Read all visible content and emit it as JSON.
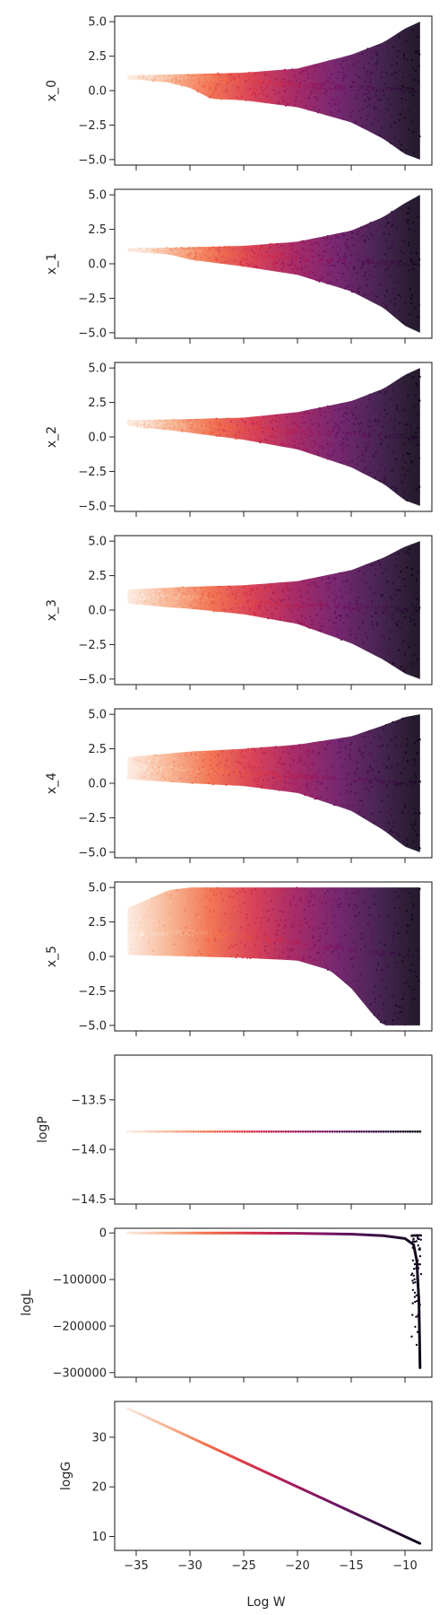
{
  "figure": {
    "xlabel": "Log W"
  },
  "colormap": [
    "#fcebe0",
    "#f7b08c",
    "#f06947",
    "#d6334a",
    "#a01a5c",
    "#6b1664",
    "#3a1245",
    "#0e0717"
  ],
  "chart_data": [
    {
      "type": "scatter",
      "ylabel": "x_0",
      "xlim": [
        -37,
        -7.5
      ],
      "ylim": [
        -5.4,
        5.4
      ],
      "x_ticks": [
        -35,
        -30,
        -25,
        -20,
        -15,
        -10
      ],
      "x_tick_labels": [],
      "y_ticks": [
        5.0,
        2.5,
        0.0,
        -2.5,
        -5.0
      ],
      "y_tick_labels": [
        "5.0",
        "2.5",
        "0.0",
        "−2.5",
        "−5.0"
      ],
      "band": {
        "x_start": -35.8,
        "x_end": -8.6,
        "peak": 5.0,
        "upper": [
          [
            -35.8,
            1.1
          ],
          [
            -30,
            1.2
          ],
          [
            -25,
            1.3
          ],
          [
            -20,
            1.6
          ],
          [
            -15,
            2.6
          ],
          [
            -12,
            3.5
          ],
          [
            -10,
            4.5
          ],
          [
            -8.6,
            5.0
          ]
        ],
        "lower": [
          [
            -35.8,
            0.85
          ],
          [
            -32,
            0.6
          ],
          [
            -30,
            0.2
          ],
          [
            -28,
            -0.6
          ],
          [
            -25,
            -0.7
          ],
          [
            -20,
            -1.2
          ],
          [
            -15,
            -2.3
          ],
          [
            -12,
            -3.5
          ],
          [
            -10,
            -4.6
          ],
          [
            -8.6,
            -5.0
          ]
        ],
        "center": [
          [
            -35.8,
            1.0
          ],
          [
            -30,
            0.95
          ],
          [
            -25,
            0.7
          ],
          [
            -20,
            0.4
          ],
          [
            -15,
            0.2
          ],
          [
            -10,
            0.0
          ],
          [
            -8.6,
            0.0
          ]
        ]
      }
    },
    {
      "type": "scatter",
      "ylabel": "x_1",
      "xlim": [
        -37,
        -7.5
      ],
      "ylim": [
        -5.4,
        5.4
      ],
      "x_ticks": [
        -35,
        -30,
        -25,
        -20,
        -15,
        -10
      ],
      "x_tick_labels": [],
      "y_ticks": [
        5.0,
        2.5,
        0.0,
        -2.5,
        -5.0
      ],
      "y_tick_labels": [
        "5.0",
        "2.5",
        "0.0",
        "−2.5",
        "−5.0"
      ],
      "band": {
        "x_start": -35.8,
        "x_end": -8.6,
        "peak": 5.0,
        "upper": [
          [
            -35.8,
            1.1
          ],
          [
            -30,
            1.2
          ],
          [
            -25,
            1.3
          ],
          [
            -20,
            1.6
          ],
          [
            -15,
            2.4
          ],
          [
            -12,
            3.4
          ],
          [
            -10,
            4.4
          ],
          [
            -8.6,
            5.0
          ]
        ],
        "lower": [
          [
            -35.8,
            0.9
          ],
          [
            -32,
            0.7
          ],
          [
            -30,
            0.3
          ],
          [
            -25,
            -0.2
          ],
          [
            -20,
            -0.8
          ],
          [
            -15,
            -2.0
          ],
          [
            -12,
            -3.2
          ],
          [
            -10,
            -4.5
          ],
          [
            -8.6,
            -5.0
          ]
        ],
        "center": [
          [
            -35.8,
            1.0
          ],
          [
            -30,
            0.85
          ],
          [
            -25,
            0.6
          ],
          [
            -20,
            0.4
          ],
          [
            -15,
            0.2
          ],
          [
            -10,
            0.0
          ],
          [
            -8.6,
            0.0
          ]
        ]
      }
    },
    {
      "type": "scatter",
      "ylabel": "x_2",
      "xlim": [
        -37,
        -7.5
      ],
      "ylim": [
        -5.4,
        5.4
      ],
      "x_ticks": [
        -35,
        -30,
        -25,
        -20,
        -15,
        -10
      ],
      "x_tick_labels": [],
      "y_ticks": [
        5.0,
        2.5,
        0.0,
        -2.5,
        -5.0
      ],
      "y_tick_labels": [
        "5.0",
        "2.5",
        "0.0",
        "−2.5",
        "−5.0"
      ],
      "band": {
        "x_start": -35.8,
        "x_end": -8.6,
        "peak": 5.0,
        "upper": [
          [
            -35.8,
            1.2
          ],
          [
            -30,
            1.3
          ],
          [
            -25,
            1.4
          ],
          [
            -20,
            1.8
          ],
          [
            -15,
            2.6
          ],
          [
            -12,
            3.5
          ],
          [
            -10,
            4.5
          ],
          [
            -8.6,
            5.0
          ]
        ],
        "lower": [
          [
            -35.8,
            0.8
          ],
          [
            -32,
            0.5
          ],
          [
            -30,
            0.3
          ],
          [
            -25,
            -0.2
          ],
          [
            -20,
            -0.9
          ],
          [
            -15,
            -2.2
          ],
          [
            -12,
            -3.4
          ],
          [
            -10,
            -4.6
          ],
          [
            -8.6,
            -5.0
          ]
        ],
        "center": [
          [
            -35.8,
            1.0
          ],
          [
            -30,
            0.85
          ],
          [
            -25,
            0.6
          ],
          [
            -20,
            0.35
          ],
          [
            -15,
            0.2
          ],
          [
            -10,
            0.0
          ],
          [
            -8.6,
            0.0
          ]
        ]
      }
    },
    {
      "type": "scatter",
      "ylabel": "x_3",
      "xlim": [
        -37,
        -7.5
      ],
      "ylim": [
        -5.4,
        5.4
      ],
      "x_ticks": [
        -35,
        -30,
        -25,
        -20,
        -15,
        -10
      ],
      "x_tick_labels": [],
      "y_ticks": [
        5.0,
        2.5,
        0.0,
        -2.5,
        -5.0
      ],
      "y_tick_labels": [
        "5.0",
        "2.5",
        "0.0",
        "−2.5",
        "−5.0"
      ],
      "band": {
        "x_start": -35.8,
        "x_end": -8.6,
        "peak": 5.0,
        "upper": [
          [
            -35.8,
            1.5
          ],
          [
            -30,
            1.7
          ],
          [
            -25,
            1.8
          ],
          [
            -20,
            2.1
          ],
          [
            -15,
            2.9
          ],
          [
            -12,
            3.8
          ],
          [
            -10,
            4.6
          ],
          [
            -8.6,
            5.0
          ]
        ],
        "lower": [
          [
            -35.8,
            0.5
          ],
          [
            -32,
            0.2
          ],
          [
            -30,
            0.1
          ],
          [
            -25,
            -0.3
          ],
          [
            -20,
            -1.0
          ],
          [
            -15,
            -2.4
          ],
          [
            -12,
            -3.6
          ],
          [
            -10,
            -4.6
          ],
          [
            -8.6,
            -5.0
          ]
        ],
        "center": [
          [
            -35.8,
            1.0
          ],
          [
            -30,
            0.9
          ],
          [
            -25,
            0.6
          ],
          [
            -20,
            0.35
          ],
          [
            -15,
            0.2
          ],
          [
            -10,
            0.0
          ],
          [
            -8.6,
            0.0
          ]
        ]
      }
    },
    {
      "type": "scatter",
      "ylabel": "x_4",
      "xlim": [
        -37,
        -7.5
      ],
      "ylim": [
        -5.4,
        5.4
      ],
      "x_ticks": [
        -35,
        -30,
        -25,
        -20,
        -15,
        -10
      ],
      "x_tick_labels": [],
      "y_ticks": [
        5.0,
        2.5,
        0.0,
        -2.5,
        -5.0
      ],
      "y_tick_labels": [
        "5.0",
        "2.5",
        "0.0",
        "−2.5",
        "−5.0"
      ],
      "band": {
        "x_start": -35.8,
        "x_end": -8.6,
        "peak": 5.0,
        "upper": [
          [
            -35.8,
            1.9
          ],
          [
            -30,
            2.3
          ],
          [
            -25,
            2.5
          ],
          [
            -20,
            2.8
          ],
          [
            -15,
            3.4
          ],
          [
            -12,
            4.2
          ],
          [
            -10,
            4.8
          ],
          [
            -8.6,
            5.0
          ]
        ],
        "lower": [
          [
            -35.8,
            0.3
          ],
          [
            -32,
            0.1
          ],
          [
            -30,
            0.0
          ],
          [
            -25,
            -0.2
          ],
          [
            -20,
            -0.7
          ],
          [
            -15,
            -2.0
          ],
          [
            -12,
            -3.4
          ],
          [
            -10,
            -4.6
          ],
          [
            -8.6,
            -5.0
          ]
        ],
        "center": [
          [
            -35.8,
            1.1
          ],
          [
            -30,
            1.0
          ],
          [
            -25,
            0.8
          ],
          [
            -20,
            0.5
          ],
          [
            -15,
            0.3
          ],
          [
            -10,
            0.0
          ],
          [
            -8.6,
            0.0
          ]
        ]
      }
    },
    {
      "type": "scatter",
      "ylabel": "x_5",
      "xlim": [
        -37,
        -7.5
      ],
      "ylim": [
        -5.4,
        5.4
      ],
      "x_ticks": [
        -35,
        -30,
        -25,
        -20,
        -15,
        -10
      ],
      "x_tick_labels": [],
      "y_ticks": [
        5.0,
        2.5,
        0.0,
        -2.5,
        -5.0
      ],
      "y_tick_labels": [
        "5.0",
        "2.5",
        "0.0",
        "−2.5",
        "−5.0"
      ],
      "band": {
        "x_start": -35.8,
        "x_end": -8.6,
        "peak": 5.0,
        "upper": [
          [
            -35.8,
            3.5
          ],
          [
            -32,
            4.8
          ],
          [
            -30,
            5.0
          ],
          [
            -20,
            5.0
          ],
          [
            -8.6,
            5.0
          ]
        ],
        "lower": [
          [
            -35.8,
            0.1
          ],
          [
            -30,
            0.0
          ],
          [
            -25,
            -0.1
          ],
          [
            -20,
            -0.3
          ],
          [
            -17,
            -1.0
          ],
          [
            -15,
            -2.3
          ],
          [
            -13,
            -4.2
          ],
          [
            -12,
            -5.0
          ],
          [
            -8.6,
            -5.0
          ]
        ],
        "center": [
          [
            -35.8,
            1.6
          ],
          [
            -30,
            1.7
          ],
          [
            -25,
            1.5
          ],
          [
            -20,
            1.0
          ],
          [
            -15,
            0.5
          ],
          [
            -10,
            0.0
          ],
          [
            -8.6,
            0.0
          ]
        ]
      }
    },
    {
      "type": "line",
      "ylabel": "logP",
      "xlim": [
        -37,
        -7.5
      ],
      "ylim": [
        -14.55,
        -13.05
      ],
      "x_ticks": [
        -35,
        -30,
        -25,
        -20,
        -15,
        -10
      ],
      "x_tick_labels": [],
      "y_ticks": [
        -13.5,
        -14.0,
        -14.5
      ],
      "y_tick_labels": [
        "−13.5",
        "−14.0",
        "−14.5"
      ],
      "x": [
        -35.8,
        -8.6
      ],
      "y": [
        -13.82,
        -13.82
      ]
    },
    {
      "type": "line",
      "ylabel": "logL",
      "xlim": [
        -37,
        -7.5
      ],
      "ylim": [
        -310000,
        10000
      ],
      "x_ticks": [
        -35,
        -30,
        -25,
        -20,
        -15,
        -10
      ],
      "x_tick_labels": [],
      "y_ticks": [
        0,
        -100000,
        -200000,
        -300000
      ],
      "y_tick_labels": [
        "0",
        "−100000",
        "−200000",
        "−300000"
      ],
      "x": [
        -35.8,
        -30,
        -25,
        -20,
        -15,
        -12,
        -10,
        -9.2,
        -8.9,
        -8.7,
        -8.6
      ],
      "y": [
        0,
        -100,
        -300,
        -800,
        -2500,
        -6000,
        -12000,
        -25000,
        -60000,
        -150000,
        -290000
      ]
    },
    {
      "type": "line",
      "ylabel": "logG",
      "xlabel": "Log W",
      "xlim": [
        -37,
        -7.5
      ],
      "ylim": [
        7.2,
        37.2
      ],
      "x_ticks": [
        -35,
        -30,
        -25,
        -20,
        -15,
        -10
      ],
      "x_tick_labels": [
        "−35",
        "−30",
        "−25",
        "−20",
        "−15",
        "−10"
      ],
      "y_ticks": [
        30,
        20,
        10
      ],
      "y_tick_labels": [
        "30",
        "20",
        "10"
      ],
      "x": [
        -35.8,
        -8.6
      ],
      "y": [
        35.8,
        8.6
      ]
    }
  ]
}
